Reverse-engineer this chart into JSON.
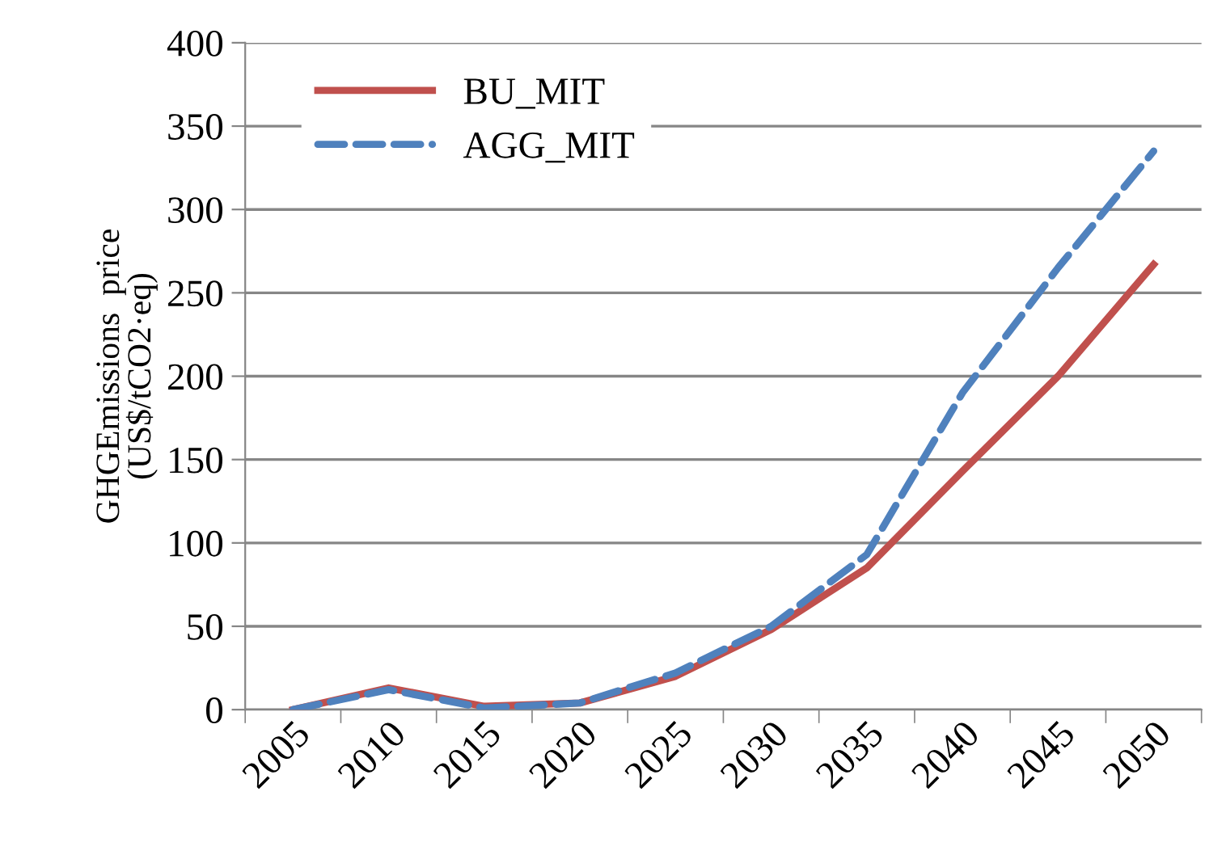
{
  "chart_data": {
    "type": "line",
    "ylabel": "GHGEmissions  price\n(US$/tCO2·eq)",
    "categories": [
      "2005",
      "2010",
      "2015",
      "2020",
      "2025",
      "2030",
      "2035",
      "2040",
      "2045",
      "2050"
    ],
    "series": [
      {
        "name": "BU_MIT",
        "color": "#c0504d",
        "line_style": "solid",
        "values": [
          0,
          13,
          2,
          4,
          20,
          48,
          85,
          143,
          200,
          267
        ]
      },
      {
        "name": "AGG_MIT",
        "color": "#4f81bd",
        "line_style": "dashed",
        "values": [
          0,
          12,
          1,
          4,
          22,
          50,
          93,
          190,
          265,
          335
        ]
      }
    ],
    "ylim": [
      0,
      400
    ],
    "yticks": [
      0,
      50,
      100,
      150,
      200,
      250,
      300,
      350,
      400
    ],
    "grid": "y",
    "legend": "top left",
    "marker": "none"
  }
}
